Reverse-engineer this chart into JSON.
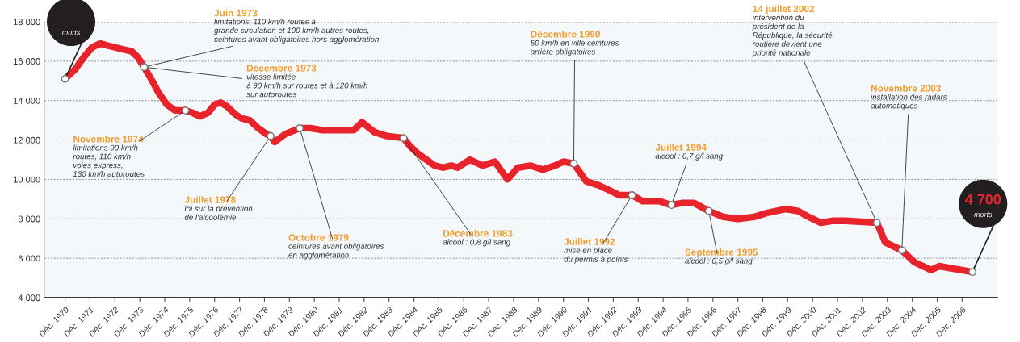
{
  "chart_data": {
    "type": "line",
    "grid": "y",
    "marker": "none",
    "line_style": "solid",
    "xlim": [
      "1970-02",
      "2008-05"
    ],
    "ylim": [
      4000,
      18000
    ],
    "yticks": [
      {
        "value": 4000,
        "label": "4 000"
      },
      {
        "value": 6000,
        "label": "6 000"
      },
      {
        "value": 8000,
        "label": "8 000"
      },
      {
        "value": 10000,
        "label": "10 000"
      },
      {
        "value": 12000,
        "label": "12 000"
      },
      {
        "value": 14000,
        "label": "14 000"
      },
      {
        "value": 16000,
        "label": "16 000"
      },
      {
        "value": 18000,
        "label": "18 000"
      }
    ],
    "xticks": [
      {
        "value": "1970-12",
        "label": "Déc. 1970"
      },
      {
        "value": "1971-12",
        "label": "Déc. 1971"
      },
      {
        "value": "1972-12",
        "label": "Déc. 1972"
      },
      {
        "value": "1973-12",
        "label": "Déc. 1973"
      },
      {
        "value": "1974-12",
        "label": "Déc. 1974"
      },
      {
        "value": "1975-12",
        "label": "Déc. 1975"
      },
      {
        "value": "1976-12",
        "label": "Déc. 1976"
      },
      {
        "value": "1977-12",
        "label": "Déc. 1977"
      },
      {
        "value": "1978-12",
        "label": "Déc. 1978"
      },
      {
        "value": "1979-12",
        "label": "Déc. 1979"
      },
      {
        "value": "1980-12",
        "label": "Déc. 1980"
      },
      {
        "value": "1981-12",
        "label": "Déc. 1981"
      },
      {
        "value": "1982-12",
        "label": "Déc. 1982"
      },
      {
        "value": "1983-12",
        "label": "Déc. 1983"
      },
      {
        "value": "1984-12",
        "label": "Déc. 1984"
      },
      {
        "value": "1985-12",
        "label": "Déc. 1985"
      },
      {
        "value": "1986-12",
        "label": "Déc. 1986"
      },
      {
        "value": "1987-12",
        "label": "Déc. 1987"
      },
      {
        "value": "1988-12",
        "label": "Déc. 1988"
      },
      {
        "value": "1989-12",
        "label": "Déc. 1989"
      },
      {
        "value": "1990-12",
        "label": "Déc. 1990"
      },
      {
        "value": "1991-12",
        "label": "Déc. 1991"
      },
      {
        "value": "1992-12",
        "label": "Déc. 1992"
      },
      {
        "value": "1993-12",
        "label": "Déc. 1993"
      },
      {
        "value": "1994-12",
        "label": "Déc. 1994"
      },
      {
        "value": "1995-12",
        "label": "Déc. 1995"
      },
      {
        "value": "1996-12",
        "label": "Déc. 1996"
      },
      {
        "value": "1997-12",
        "label": "Déc. 1997"
      },
      {
        "value": "1998-12",
        "label": "Déc. 1998"
      },
      {
        "value": "1999-12",
        "label": "Déc. 1999"
      },
      {
        "value": "2000-12",
        "label": "Déc. 2000"
      },
      {
        "value": "2001-12",
        "label": "Déc. 2001"
      },
      {
        "value": "2002-12",
        "label": "Déc. 2002"
      },
      {
        "value": "2003-12",
        "label": "Déc. 2003"
      },
      {
        "value": "2004-12",
        "label": "Déc. 2004"
      },
      {
        "value": "2005-12",
        "label": "Déc. 2005"
      },
      {
        "value": "2006-12",
        "label": "Déc. 2006"
      }
    ],
    "series": [
      {
        "color": "#e8232b",
        "x": [
          "1970-12",
          "1971-05",
          "1971-09",
          "1972-01",
          "1972-05",
          "1972-08",
          "1972-12",
          "1973-04",
          "1973-08",
          "1973-11",
          "1974-02",
          "1974-06",
          "1974-09",
          "1975-01",
          "1975-05",
          "1975-10",
          "1976-01",
          "1976-05",
          "1976-09",
          "1976-12",
          "1977-03",
          "1977-06",
          "1977-10",
          "1978-01",
          "1978-05",
          "1978-09",
          "1979-01",
          "1979-03",
          "1979-05",
          "1979-10",
          "1980-05",
          "1980-10",
          "1981-04",
          "1981-12",
          "1982-07",
          "1982-11",
          "1983-05",
          "1983-11",
          "1984-07",
          "1984-10",
          "1985-02",
          "1985-06",
          "1985-10",
          "1986-02",
          "1986-06",
          "1986-09",
          "1987-03",
          "1987-09",
          "1988-03",
          "1988-09",
          "1989-02",
          "1989-08",
          "1990-02",
          "1990-08",
          "1990-12",
          "1991-05",
          "1991-11",
          "1992-05",
          "1992-11",
          "1993-03",
          "1993-09",
          "1994-02",
          "1994-10",
          "1995-04",
          "1995-09",
          "1996-03",
          "1996-10",
          "1997-05",
          "1997-12",
          "1998-08",
          "1999-02",
          "1999-11",
          "2000-05",
          "2000-10",
          "2001-04",
          "2001-10",
          "2002-04",
          "2003-07",
          "2003-11",
          "2004-07",
          "2005-01",
          "2005-09",
          "2006-01",
          "2006-06",
          "2006-12",
          "2007-05"
        ],
        "values": [
          15100,
          15600,
          16200,
          16700,
          16900,
          16800,
          16700,
          16600,
          16500,
          16200,
          15700,
          15000,
          14400,
          13800,
          13500,
          13500,
          13400,
          13200,
          13400,
          13800,
          13900,
          13700,
          13300,
          13100,
          13000,
          12600,
          12300,
          12200,
          11900,
          12300,
          12600,
          12600,
          12500,
          12500,
          12500,
          12900,
          12400,
          12200,
          12100,
          11700,
          11300,
          11000,
          10700,
          10600,
          10700,
          10600,
          11000,
          10700,
          10900,
          10000,
          10600,
          10700,
          10500,
          10700,
          10900,
          10800,
          9900,
          9700,
          9400,
          9200,
          9200,
          8900,
          8900,
          8700,
          8800,
          8800,
          8400,
          8100,
          8000,
          8100,
          8300,
          8500,
          8400,
          8100,
          7800,
          7900,
          7900,
          7800,
          6800,
          6400,
          5800,
          5400,
          5600,
          5500,
          5400,
          5300
        ]
      }
    ],
    "annotations": [
      {
        "text": "Juin 1973\nlimitations: 110 km/h routes à\ngrande circulation et 100 km/h autres routes,\nceintures avant obligatoires hors agglomération",
        "x": "1974-02",
        "y": 15700
      },
      {
        "text": "Décembre 1973\nvitesse limitée\nà 90 km/h sur routes et à 120 km/h\nsur autoroutes",
        "x": "1974-02",
        "y": 15700
      },
      {
        "text": "Novembre 1974\nlimitations 90 km/h\nroutes, 110 km/h\nvoies express,\n130 km/h autoroutes",
        "x": "1975-10",
        "y": 13500
      },
      {
        "text": "Juillet 1978\nloi sur la prévention\nde l'alcoolémie",
        "x": "1979-03",
        "y": 12200
      },
      {
        "text": "Octobre 1979\nceintures avant obligatoires\nen agglomération",
        "x": "1980-05",
        "y": 12600
      },
      {
        "text": "Décembre 1983\nalcool : 0,8 g/l sang",
        "x": "1984-07",
        "y": 12100
      },
      {
        "text": "Décembre 1990\n50 km/h en ville ceintures\narrière obligatoires",
        "x": "1991-05",
        "y": 10800
      },
      {
        "text": "Juillet 1992\nmise en place\ndu permis à points",
        "x": "1993-09",
        "y": 9200
      },
      {
        "text": "Juillet 1994\nalcool : 0,7 g/l sang",
        "x": "1995-04",
        "y": 8700
      },
      {
        "text": "Septembre 1995\nalcool : 0,5 g/l sang",
        "x": "1996-10",
        "y": 8400
      },
      {
        "text": "14 juillet 2002\nintervention du\nprésident de la\nRépublique, la sécurité\nroutière devient une\npriorité nationale",
        "x": "2003-07",
        "y": 7800
      },
      {
        "text": "Novembre 2003\ninstallation des radars\nautomatiques",
        "x": "2004-07",
        "y": 6400
      },
      {
        "text": "4 700\nmorts",
        "x": "2007-05",
        "y": 5300
      },
      {
        "text": "morts",
        "x": "1970-12",
        "y": 15100
      }
    ]
  }
}
